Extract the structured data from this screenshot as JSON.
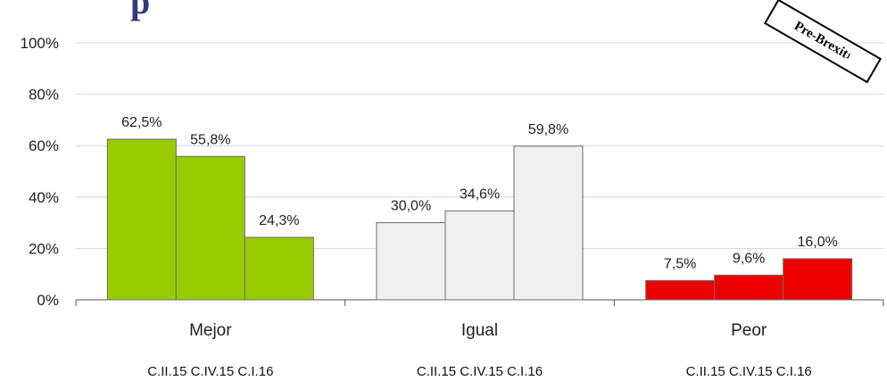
{
  "title_fragment": "p",
  "stamp": {
    "text": "Pre-Brexit",
    "sup": "1"
  },
  "colors": {
    "grid": "#c7d8ee",
    "axis": "#555555",
    "bar_stroke": "#6b6b6b",
    "groups": [
      "#99cc00",
      "#f0f0f0",
      "#ee0000"
    ]
  },
  "chart_data": {
    "type": "bar",
    "ylim": [
      0,
      100
    ],
    "y_ticks": [
      "0%",
      "20%",
      "40%",
      "60%",
      "80%",
      "100%"
    ],
    "y_tick_values": [
      0,
      20,
      40,
      60,
      80,
      100
    ],
    "grid": true,
    "categories": [
      "Mejor",
      "Igual",
      "Peor"
    ],
    "series_labels": [
      "C.II.15",
      "C.IV.15",
      "C.I.16"
    ],
    "sublabel": "C.II.15 C.IV.15 C.I.16",
    "values": [
      [
        62.5,
        55.8,
        24.3
      ],
      [
        30.0,
        34.6,
        59.8
      ],
      [
        7.5,
        9.6,
        16.0
      ]
    ],
    "value_labels": [
      [
        "62,5%",
        "55,8%",
        "24,3%"
      ],
      [
        "30,0%",
        "34,6%",
        "59,8%"
      ],
      [
        "7,5%",
        "9,6%",
        "16,0%"
      ]
    ]
  }
}
